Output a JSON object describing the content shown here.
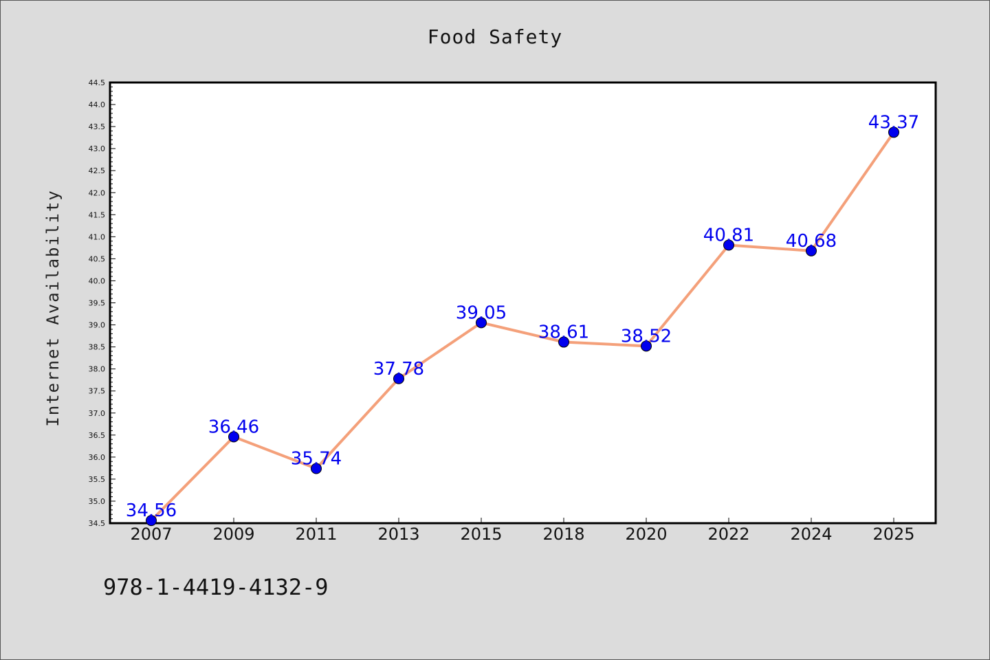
{
  "chart_data": {
    "type": "line",
    "title": "Food Safety",
    "xlabel": "",
    "ylabel": "Internet Availability",
    "categories": [
      "2007",
      "2009",
      "2011",
      "2013",
      "2015",
      "2018",
      "2020",
      "2022",
      "2024",
      "2025"
    ],
    "series": [
      {
        "values": [
          34.56,
          36.46,
          35.74,
          37.78,
          39.05,
          38.61,
          38.52,
          40.81,
          40.68,
          43.37
        ],
        "labels": [
          "34.56",
          "36.46",
          "35.74",
          "37.78",
          "39.05",
          "38.61",
          "38.52",
          "40.81",
          "40.68",
          "43.37"
        ],
        "line_color": "#f4a07a",
        "marker_color": "#0000ee"
      }
    ],
    "ylim": [
      34.5,
      44.5
    ],
    "yticks": [
      "34.5",
      "35.0",
      "35.5",
      "36.0",
      "36.5",
      "37.0",
      "37.5",
      "38.0",
      "38.5",
      "39.0",
      "39.5",
      "40.0",
      "40.5",
      "41.0",
      "41.5",
      "42.0",
      "42.5",
      "43.0",
      "43.5",
      "44.0",
      "44.5"
    ],
    "grid": false,
    "legend": "none"
  },
  "footer": {
    "isbn": "978-1-4419-4132-9"
  }
}
